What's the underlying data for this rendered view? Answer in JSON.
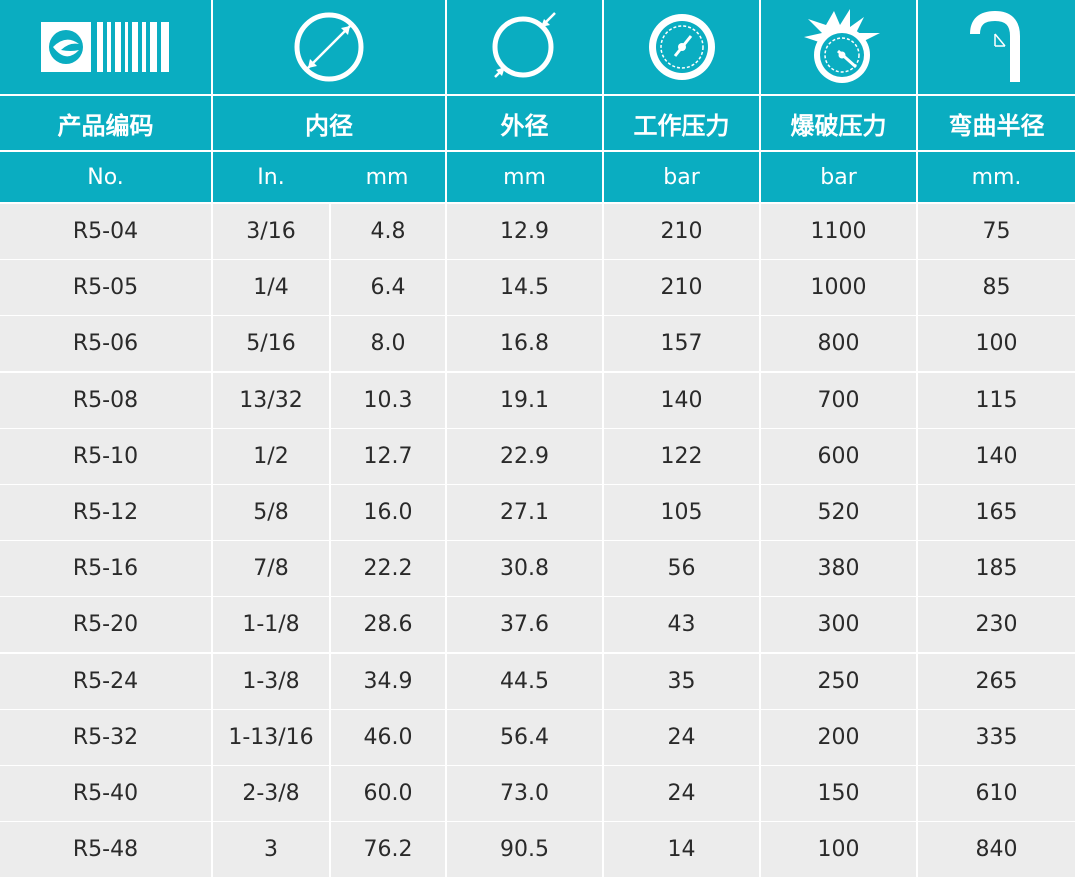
{
  "colors": {
    "header": "#0aadc1",
    "row": "#ececec",
    "text": "#2a2a2a",
    "header_text": "#ffffff"
  },
  "icons": [
    "brand-logo-icon",
    "inner-diameter-icon",
    "outer-diameter-icon",
    "working-pressure-gauge-icon",
    "burst-pressure-gauge-icon",
    "bend-radius-icon"
  ],
  "headers": {
    "code": "产品编码",
    "inner_diameter": "内径",
    "outer_diameter": "外径",
    "working_pressure": "工作压力",
    "burst_pressure": "爆破压力",
    "bend_radius": "弯曲半径"
  },
  "units": {
    "code": "No.",
    "inner_in": "In.",
    "inner_mm": "mm",
    "outer": "mm",
    "working": "bar",
    "burst": "bar",
    "bend": "mm."
  },
  "rows": [
    {
      "no": "R5-04",
      "in": "3/16",
      "mm": "4.8",
      "od": "12.9",
      "wp": "210",
      "bp": "1100",
      "br": "75"
    },
    {
      "no": "R5-05",
      "in": "1/4",
      "mm": "6.4",
      "od": "14.5",
      "wp": "210",
      "bp": "1000",
      "br": "85"
    },
    {
      "no": "R5-06",
      "in": "5/16",
      "mm": "8.0",
      "od": "16.8",
      "wp": "157",
      "bp": "800",
      "br": "100"
    },
    {
      "no": "R5-08",
      "in": "13/32",
      "mm": "10.3",
      "od": "19.1",
      "wp": "140",
      "bp": "700",
      "br": "115"
    },
    {
      "no": "R5-10",
      "in": "1/2",
      "mm": "12.7",
      "od": "22.9",
      "wp": "122",
      "bp": "600",
      "br": "140"
    },
    {
      "no": "R5-12",
      "in": "5/8",
      "mm": "16.0",
      "od": "27.1",
      "wp": "105",
      "bp": "520",
      "br": "165"
    },
    {
      "no": "R5-16",
      "in": "7/8",
      "mm": "22.2",
      "od": "30.8",
      "wp": "56",
      "bp": "380",
      "br": "185"
    },
    {
      "no": "R5-20",
      "in": "1-1/8",
      "mm": "28.6",
      "od": "37.6",
      "wp": "43",
      "bp": "300",
      "br": "230"
    },
    {
      "no": "R5-24",
      "in": "1-3/8",
      "mm": "34.9",
      "od": "44.5",
      "wp": "35",
      "bp": "250",
      "br": "265"
    },
    {
      "no": "R5-32",
      "in": "1-13/16",
      "mm": "46.0",
      "od": "56.4",
      "wp": "24",
      "bp": "200",
      "br": "335"
    },
    {
      "no": "R5-40",
      "in": "2-3/8",
      "mm": "60.0",
      "od": "73.0",
      "wp": "24",
      "bp": "150",
      "br": "610"
    },
    {
      "no": "R5-48",
      "in": "3",
      "mm": "76.2",
      "od": "90.5",
      "wp": "14",
      "bp": "100",
      "br": "840"
    }
  ]
}
